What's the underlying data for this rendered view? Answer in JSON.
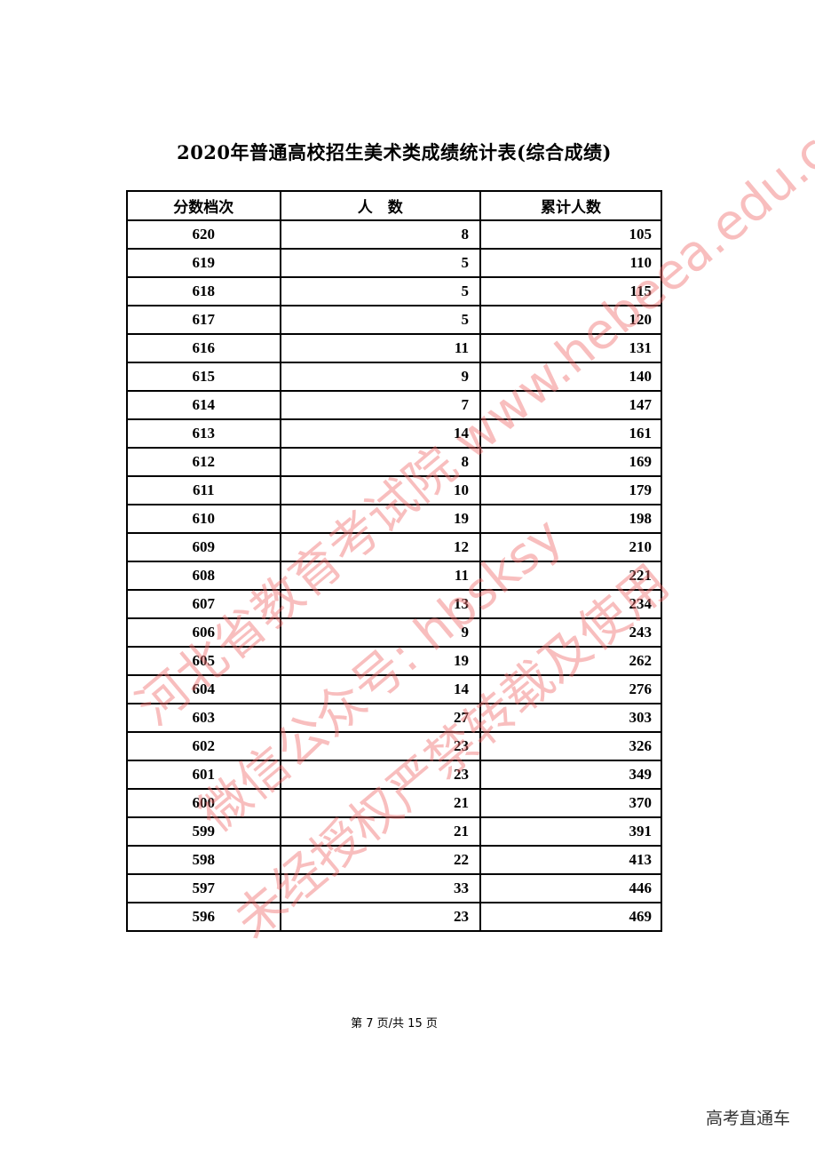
{
  "title": "2020年普通高校招生美术类成绩统计表(综合成绩)",
  "table": {
    "headers": [
      "分数档次",
      "人　数",
      "累计人数"
    ],
    "rows": [
      [
        "620",
        "8",
        "105"
      ],
      [
        "619",
        "5",
        "110"
      ],
      [
        "618",
        "5",
        "115"
      ],
      [
        "617",
        "5",
        "120"
      ],
      [
        "616",
        "11",
        "131"
      ],
      [
        "615",
        "9",
        "140"
      ],
      [
        "614",
        "7",
        "147"
      ],
      [
        "613",
        "14",
        "161"
      ],
      [
        "612",
        "8",
        "169"
      ],
      [
        "611",
        "10",
        "179"
      ],
      [
        "610",
        "19",
        "198"
      ],
      [
        "609",
        "12",
        "210"
      ],
      [
        "608",
        "11",
        "221"
      ],
      [
        "607",
        "13",
        "234"
      ],
      [
        "606",
        "9",
        "243"
      ],
      [
        "605",
        "19",
        "262"
      ],
      [
        "604",
        "14",
        "276"
      ],
      [
        "603",
        "27",
        "303"
      ],
      [
        "602",
        "23",
        "326"
      ],
      [
        "601",
        "23",
        "349"
      ],
      [
        "600",
        "21",
        "370"
      ],
      [
        "599",
        "21",
        "391"
      ],
      [
        "598",
        "22",
        "413"
      ],
      [
        "597",
        "33",
        "446"
      ],
      [
        "596",
        "23",
        "469"
      ]
    ]
  },
  "footer": "第 7 页/共 15 页",
  "watermark": [
    "河北省教育考试院 www.hebeea.edu.cn",
    "微信公众号: hbsksy",
    "未经授权严禁转载及使用"
  ],
  "corner_logo": "高考直通车",
  "colors": {
    "watermark": "#f06e6e"
  }
}
